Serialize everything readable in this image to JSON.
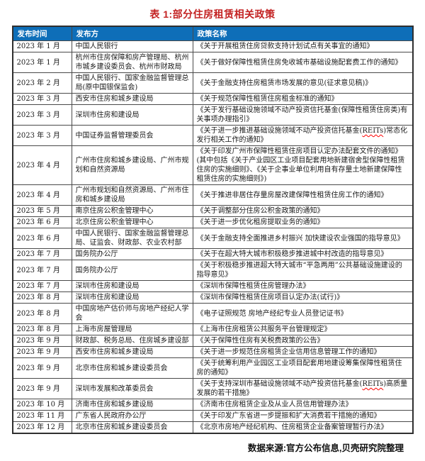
{
  "title": "表 1:部分住房租赁相关政策",
  "source_note": "数据来源:官方公布信息,贝壳研究院整理",
  "colors": {
    "header_bg": "#0e6eb8",
    "header_text": "#ffffff",
    "title_red": "#c32222",
    "border": "#4a4a4a",
    "spellcheck_underline": "#ff0000"
  },
  "table": {
    "columns": [
      "发布时间",
      "发布方",
      "政策名称"
    ],
    "rows": [
      {
        "date": "2023 年 1 月",
        "publisher": "中国人民银行",
        "policy": "《关于开展租赁住房贷款支持计划试点有关事宜的通知》"
      },
      {
        "date": "2023 年 1 月",
        "publisher": "杭州市住房保障和房产管理局、杭州市城乡建设委员会、杭州市财政局",
        "policy": "《关于做好保障性租赁住房免收城市基础设施配套费工作的通知》"
      },
      {
        "date": "2023 年 2 月",
        "publisher": "中国人民银行、国家金融监督管理总局(原中国银保监会)",
        "policy": "《关于金融支持住房租赁市场发展的意见(征求意见稿)》"
      },
      {
        "date": "2023 年 3 月",
        "publisher": "西安市住房和城乡建设局",
        "policy": "《关于规范保障性租赁住房租金标准的通知》"
      },
      {
        "date": "2023 年 3 月",
        "publisher": "深圳市住房和建设局",
        "policy": "《关于发行基础设施领域不动产投资信托基金(保障性租赁住房类)有关事项办理指引》"
      },
      {
        "date": "2023 年 3 月",
        "publisher": "中国证券监督管理委员会",
        "policy": "《关于进一步推进基础设施领域不动产投资信托基金(REITs)常态化发行相关工作的通知》"
      },
      {
        "date": "2023 年 4 月",
        "publisher": "广州市住房和城乡建设局、广州市规划和自然资源局",
        "policy": "《关于印发广州市保障性租赁住房项目认定办法配套文件的通知》(其中包括《关于产业园区工业项目配套用地新建宿舍型保障性租赁住房的实施细则》、《关于企事业单位利用自有存量土地新建保障性租赁住房的实施细则》)"
      },
      {
        "date": "2023 年 4 月",
        "publisher": "广州市规划和自然资源局、广州市住房和城乡建设局",
        "policy": "《关于推进非居住存量房屋改建保障性租赁住房工作的通知》"
      },
      {
        "date": "2023 年 5 月",
        "publisher": "南京住房公积金管理中心",
        "policy": "《关于调整部分住房公积金政策的通知》"
      },
      {
        "date": "2023 年 6 月",
        "publisher": "北京住房公积金管理中心",
        "policy": "《关于进一步优化租房提取业务的通知》"
      },
      {
        "date": "2023 年 6 月",
        "publisher": "中国人民银行、国家金融监督管理总局、证监会、财政部、农业农村部",
        "policy": "《关于金融支持全面推进乡村振兴 加快建设农业强国的指导意见》"
      },
      {
        "date": "2023 年 7 月",
        "publisher": "国务院办公厅",
        "policy": "《关于在超大特大城市积极稳步推进城中村改造的指导意见》"
      },
      {
        "date": "2023 年 7 月",
        "publisher": "国务院办公厅",
        "policy": "《关于积极稳步推进超大特大城市“平急两用”公共基础设施建设的指导意见》"
      },
      {
        "date": "2023 年 7 月",
        "publisher": "深圳市住房和建设局",
        "policy": "《深圳市保障性租赁住房管理办法》"
      },
      {
        "date": "2023 年 8 月",
        "publisher": "深圳市住房和建设局",
        "policy": "《深圳市保障性租赁住房项目认定办法(试行)》"
      },
      {
        "date": "2023 年 8 月",
        "publisher": "中国房地产估价师与房地产经纪人学会",
        "policy": "《电子证照规范 房地产经纪专业人员登记证书》"
      },
      {
        "date": "2023 年 8 月",
        "publisher": "上海市房屋管理局",
        "policy": "《上海市住房租赁公共服务平台管理规定》"
      },
      {
        "date": "2023 年 9 月",
        "publisher": "财政部、税务总局、住房城乡建设部",
        "policy": "《关于保障性住房有关税费政策的公告》"
      },
      {
        "date": "2023 年 9 月",
        "publisher": "西安市住房和城乡建设局",
        "policy": "《关于进一步规范住房租赁企业信用信息管理工作的通知》"
      },
      {
        "date": "2023 年 9 月",
        "publisher": "北京市住房和城乡建设委员会",
        "policy": "《关于统筹利用产业园区工业项目配套用地建设筹集保障性租赁住房的通知》"
      },
      {
        "date": "2023 年 9 月",
        "publisher": "深圳市发展和改革委员会",
        "policy": "《关于支持深圳市基础设施领域不动产投资信托基金(REITs)高质量发展的若干措施》"
      },
      {
        "date": "2023 年 10 月",
        "publisher": "济南市住房和城乡建设局",
        "policy": "《济南市住房租赁企业及从业人员信用管理办法》"
      },
      {
        "date": "2023 年 11 月",
        "publisher": "广东省人民政府办公厅",
        "policy": "《关于印发广东省进一步提振和扩大消费若干措施的通知》"
      },
      {
        "date": "2023 年 12 月",
        "publisher": "北京市住房和城乡建设委员会",
        "policy": "《北京市房地产经纪机构、住房租赁企业备案管理暂行办法》"
      }
    ]
  }
}
